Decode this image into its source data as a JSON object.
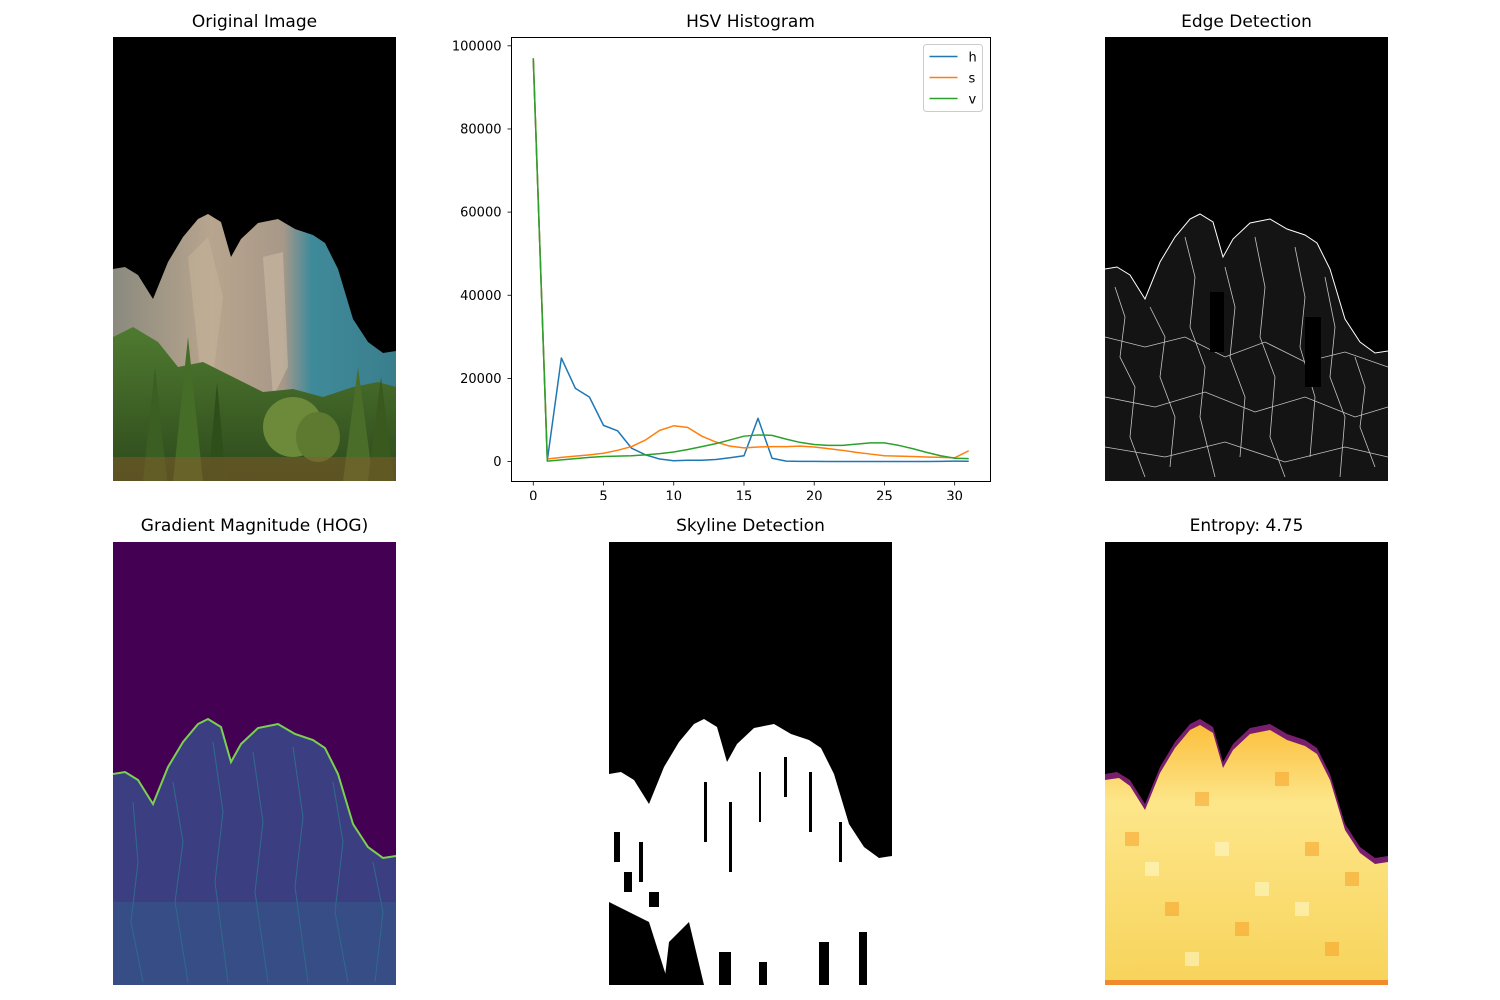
{
  "panels": {
    "original": {
      "title": "Original Image"
    },
    "histogram": {
      "title": "HSV Histogram"
    },
    "edges": {
      "title": "Edge Detection"
    },
    "gradient": {
      "title": "Gradient Magnitude (HOG)"
    },
    "skyline": {
      "title": "Skyline Detection"
    },
    "entropy": {
      "title": "Entropy: 4.75"
    }
  },
  "chart_data": {
    "type": "line",
    "title": "HSV Histogram",
    "xlabel": "",
    "ylabel": "",
    "xlim": [
      -1.55,
      32.55
    ],
    "ylim": [
      -4800,
      102000
    ],
    "xticks": [
      0,
      5,
      10,
      15,
      20,
      25,
      30
    ],
    "yticks": [
      0,
      20000,
      40000,
      60000,
      80000,
      100000
    ],
    "legend_position": "top-right",
    "x": [
      0,
      1,
      2,
      3,
      4,
      5,
      6,
      7,
      8,
      9,
      10,
      11,
      12,
      13,
      14,
      15,
      16,
      17,
      18,
      19,
      20,
      21,
      22,
      23,
      24,
      25,
      26,
      27,
      28,
      29,
      30,
      31
    ],
    "series": [
      {
        "name": "h",
        "color": "#1f77b4",
        "values": [
          97000,
          300,
          24900,
          17600,
          15500,
          8700,
          7400,
          3200,
          1600,
          600,
          200,
          300,
          300,
          500,
          900,
          1400,
          10400,
          800,
          100,
          50,
          30,
          20,
          10,
          10,
          10,
          10,
          10,
          10,
          10,
          50,
          100,
          80
        ]
      },
      {
        "name": "s",
        "color": "#ff7f0e",
        "values": [
          97000,
          600,
          1000,
          1300,
          1600,
          2000,
          2700,
          3600,
          5200,
          7500,
          8600,
          8200,
          6100,
          4700,
          3700,
          3300,
          3500,
          3600,
          3600,
          3700,
          3500,
          3100,
          2700,
          2200,
          1800,
          1400,
          1300,
          1200,
          1100,
          1000,
          900,
          2600
        ]
      },
      {
        "name": "v",
        "color": "#2ca02c",
        "values": [
          97000,
          100,
          400,
          700,
          1000,
          1200,
          1300,
          1400,
          1600,
          1900,
          2300,
          2900,
          3600,
          4300,
          5200,
          6100,
          6400,
          6300,
          5400,
          4600,
          4100,
          3900,
          3900,
          4200,
          4500,
          4500,
          3900,
          3100,
          2200,
          1400,
          800,
          700
        ]
      }
    ]
  }
}
